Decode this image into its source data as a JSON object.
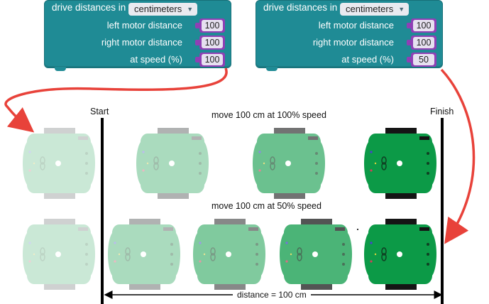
{
  "blocks": [
    {
      "title": "drive distances in",
      "unit": "centimeters",
      "rows": [
        {
          "label": "left motor distance",
          "value": "100"
        },
        {
          "label": "right motor distance",
          "value": "100"
        },
        {
          "label": "at speed (%)",
          "value": "100"
        }
      ]
    },
    {
      "title": "drive distances in",
      "unit": "centimeters",
      "rows": [
        {
          "label": "left motor distance",
          "value": "100"
        },
        {
          "label": "right motor distance",
          "value": "100"
        },
        {
          "label": "at speed (%)",
          "value": "50"
        }
      ]
    }
  ],
  "labels": {
    "start": "Start",
    "finish": "Finish",
    "row1_caption": "move 100 cm at 100% speed",
    "row2_caption": "move 100 cm at 50% speed",
    "distance": "distance = 100 cm"
  },
  "colors": {
    "block": "#1f8b95",
    "plug": "#8f3fb5",
    "arrow": "#e8423a",
    "robot_full": "#0c9a47",
    "robot_faded": "#dff1e6"
  },
  "robots": {
    "row1": [
      0.1,
      0.25,
      0.55,
      1.0
    ],
    "row2": [
      0.1,
      0.25,
      0.45,
      0.7,
      1.0
    ]
  }
}
